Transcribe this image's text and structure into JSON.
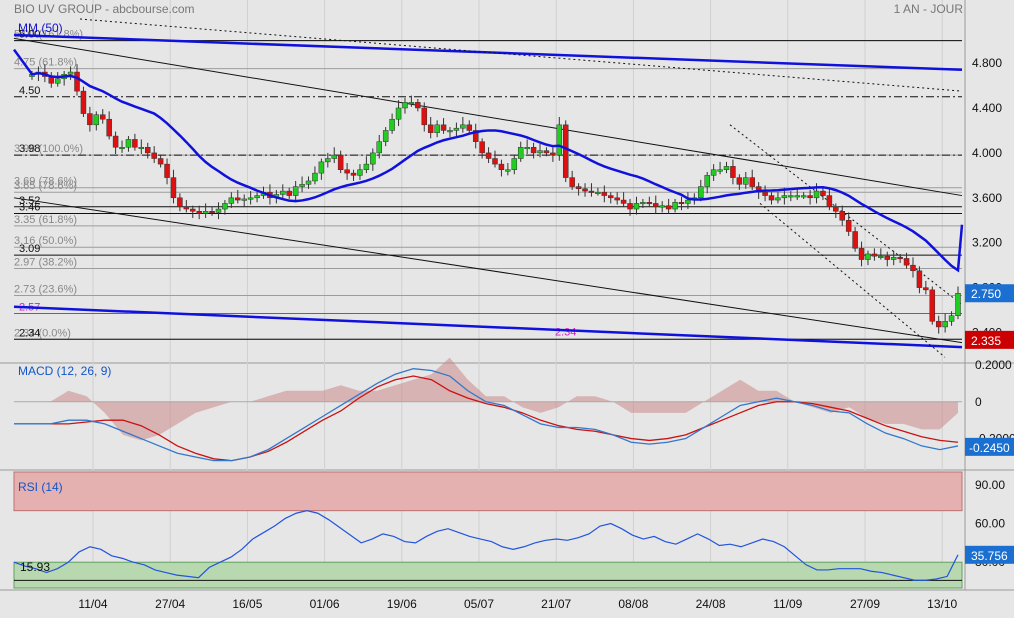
{
  "header": {
    "title": "BIO UV GROUP - abcbourse.com",
    "period": "1 AN - JOUR"
  },
  "x_axis_dates": [
    "11/04",
    "27/04",
    "16/05",
    "01/06",
    "19/06",
    "05/07",
    "21/07",
    "08/08",
    "24/08",
    "11/09",
    "27/09",
    "13/10"
  ],
  "price_panel": {
    "indicator_label": "MM (50)",
    "y_ticks": [
      "4.800",
      "4.400",
      "4.000",
      "3.600",
      "3.200",
      "2.800",
      "2.400"
    ],
    "current_price_label": "2.750",
    "support_label": "2.335",
    "levels": [
      {
        "name": "level-5-00",
        "value": 5.0,
        "label": "5.00",
        "style": "solid"
      },
      {
        "name": "level-4-50",
        "value": 4.5,
        "label": "4.50",
        "style": "dashdot"
      },
      {
        "name": "level-3-98",
        "value": 3.98,
        "label": "3.98",
        "style": "dashdot"
      },
      {
        "name": "level-3-52",
        "value": 3.52,
        "label": "3.52",
        "style": "solid"
      },
      {
        "name": "level-3-46",
        "value": 3.46,
        "label": "3.46",
        "style": "solid"
      },
      {
        "name": "level-3-09",
        "value": 3.09,
        "label": "3.09",
        "style": "solid"
      },
      {
        "name": "level-2-34",
        "value": 2.34,
        "label": "2.34",
        "style": "solid"
      }
    ],
    "fib_levels": [
      {
        "value": 5.0,
        "label": "5.00 (161.8%)"
      },
      {
        "value": 4.75,
        "label": "4.75 (61.8%)"
      },
      {
        "value": 3.98,
        "label": "3.98 (100.0%)"
      },
      {
        "value": 3.69,
        "label": "3.69 (78.6%)"
      },
      {
        "value": 3.65,
        "label": "3.65 (78.6%)"
      },
      {
        "value": 3.35,
        "label": "3.35 (61.8%)"
      },
      {
        "value": 3.16,
        "label": "3.16 (50.0%)"
      },
      {
        "value": 2.97,
        "label": "2.97 (38.2%)"
      },
      {
        "value": 2.73,
        "label": "2.73 (23.6%)"
      },
      {
        "value": 2.34,
        "label": "2.34 (0.0%)"
      }
    ],
    "magenta_level": {
      "value": 2.57,
      "label": "2.57"
    },
    "mid_label": "2.34"
  },
  "macd_panel": {
    "label": "MACD (12, 26, 9)",
    "y_ticks": [
      "0.2000",
      "0",
      "-0.2000"
    ],
    "current_label": "-0.2450"
  },
  "rsi_panel": {
    "label": "RSI (14)",
    "y_ticks": [
      "90.00",
      "60.00",
      "30.00"
    ],
    "current_label": "35.756",
    "low_label": "15.93"
  },
  "colors": {
    "up": "#22cc22",
    "down": "#dd1111",
    "ma": "#1111dd",
    "macd": "#3377cc",
    "signal": "#cc1111",
    "rsi": "#2255dd",
    "magenta": "#cc22cc",
    "badge_blue": "#1a6fd0",
    "badge_red": "#cc0000"
  },
  "chart_data": [
    {
      "type": "candlestick",
      "title": "BIO UV GROUP - abcbourse.com",
      "period": "1 AN - JOUR",
      "ylim": [
        2.2,
        5.05
      ],
      "moving_average": "MM (50)",
      "close": [
        4.7,
        4.72,
        4.68,
        4.62,
        4.66,
        4.7,
        4.72,
        4.55,
        4.35,
        4.25,
        4.34,
        4.3,
        4.15,
        4.05,
        4.05,
        4.12,
        4.05,
        4.05,
        4.0,
        3.95,
        3.9,
        3.78,
        3.6,
        3.52,
        3.5,
        3.48,
        3.46,
        3.48,
        3.47,
        3.5,
        3.55,
        3.6,
        3.58,
        3.59,
        3.6,
        3.62,
        3.65,
        3.6,
        3.63,
        3.66,
        3.62,
        3.7,
        3.72,
        3.75,
        3.82,
        3.92,
        3.95,
        3.98,
        3.85,
        3.82,
        3.8,
        3.85,
        3.9,
        4.0,
        4.1,
        4.2,
        4.3,
        4.4,
        4.45,
        4.45,
        4.4,
        4.25,
        4.18,
        4.25,
        4.2,
        4.2,
        4.22,
        4.25,
        4.2,
        4.1,
        4.0,
        3.95,
        3.9,
        3.85,
        3.85,
        3.95,
        4.05,
        4.05,
        4.0,
        4.02,
        4.0,
        3.98,
        4.25,
        3.78,
        3.7,
        3.68,
        3.66,
        3.65,
        3.65,
        3.62,
        3.6,
        3.58,
        3.55,
        3.5,
        3.55,
        3.56,
        3.55,
        3.52,
        3.53,
        3.5,
        3.56,
        3.55,
        3.58,
        3.6,
        3.7,
        3.8,
        3.85,
        3.85,
        3.88,
        3.78,
        3.72,
        3.78,
        3.7,
        3.65,
        3.62,
        3.58,
        3.6,
        3.62,
        3.62,
        3.62,
        3.62,
        3.6,
        3.66,
        3.62,
        3.52,
        3.48,
        3.4,
        3.3,
        3.15,
        3.05,
        3.1,
        3.08,
        3.08,
        3.05,
        3.07,
        3.06,
        3.0,
        2.95,
        2.8,
        2.78,
        2.5,
        2.45,
        2.5,
        2.55,
        2.75
      ],
      "y_ticks": [
        4.8,
        4.4,
        4.0,
        3.6,
        3.2,
        2.8,
        2.4
      ]
    },
    {
      "type": "line",
      "title": "MACD (12, 26, 9)",
      "ylim": [
        -0.36,
        0.2
      ],
      "series": [
        {
          "values": [
            -0.12,
            -0.12,
            -0.12,
            -0.1,
            -0.1,
            -0.12,
            -0.16,
            -0.2,
            -0.24,
            -0.28,
            -0.3,
            -0.32,
            -0.32,
            -0.3,
            -0.26,
            -0.2,
            -0.14,
            -0.08,
            -0.02,
            0.04,
            0.1,
            0.15,
            0.18,
            0.17,
            0.14,
            0.06,
            0.0,
            -0.02,
            -0.07,
            -0.12,
            -0.14,
            -0.14,
            -0.15,
            -0.18,
            -0.22,
            -0.23,
            -0.22,
            -0.2,
            -0.14,
            -0.08,
            -0.02,
            0.0,
            0.02,
            0.0,
            -0.02,
            -0.05,
            -0.06,
            -0.12,
            -0.17,
            -0.2,
            -0.24,
            -0.26,
            -0.24
          ]
        },
        {
          "values": [
            -0.12,
            -0.12,
            -0.12,
            -0.12,
            -0.11,
            -0.1,
            -0.1,
            -0.13,
            -0.18,
            -0.24,
            -0.28,
            -0.31,
            -0.32,
            -0.3,
            -0.27,
            -0.22,
            -0.16,
            -0.1,
            -0.05,
            0.02,
            0.08,
            0.12,
            0.14,
            0.12,
            0.06,
            0.02,
            -0.01,
            -0.03,
            -0.06,
            -0.1,
            -0.13,
            -0.15,
            -0.16,
            -0.18,
            -0.2,
            -0.21,
            -0.2,
            -0.18,
            -0.14,
            -0.1,
            -0.06,
            -0.02,
            0.0,
            0.0,
            -0.01,
            -0.03,
            -0.05,
            -0.09,
            -0.13,
            -0.16,
            -0.19,
            -0.21,
            -0.22
          ]
        }
      ],
      "y_ticks": [
        0.2,
        0,
        -0.2
      ]
    },
    {
      "type": "line",
      "title": "RSI (14)",
      "ylim": [
        10,
        100
      ],
      "series": [
        {
          "values": [
            30,
            27,
            25,
            22,
            25,
            30,
            38,
            42,
            40,
            35,
            33,
            30,
            28,
            24,
            22,
            20,
            19,
            18,
            26,
            30,
            34,
            40,
            48,
            53,
            58,
            64,
            68,
            70,
            68,
            63,
            57,
            51,
            45,
            48,
            52,
            50,
            46,
            45,
            50,
            54,
            56,
            53,
            50,
            48,
            46,
            42,
            40,
            42,
            45,
            47,
            48,
            47,
            49,
            52,
            58,
            60,
            56,
            51,
            48,
            50,
            46,
            44,
            48,
            52,
            48,
            43,
            44,
            42,
            45,
            48,
            46,
            42,
            35,
            28,
            24,
            24,
            25,
            25,
            25,
            23,
            22,
            20,
            18,
            16,
            16,
            17,
            19,
            35.756
          ]
        }
      ],
      "y_ticks": [
        90,
        60,
        30
      ]
    }
  ]
}
